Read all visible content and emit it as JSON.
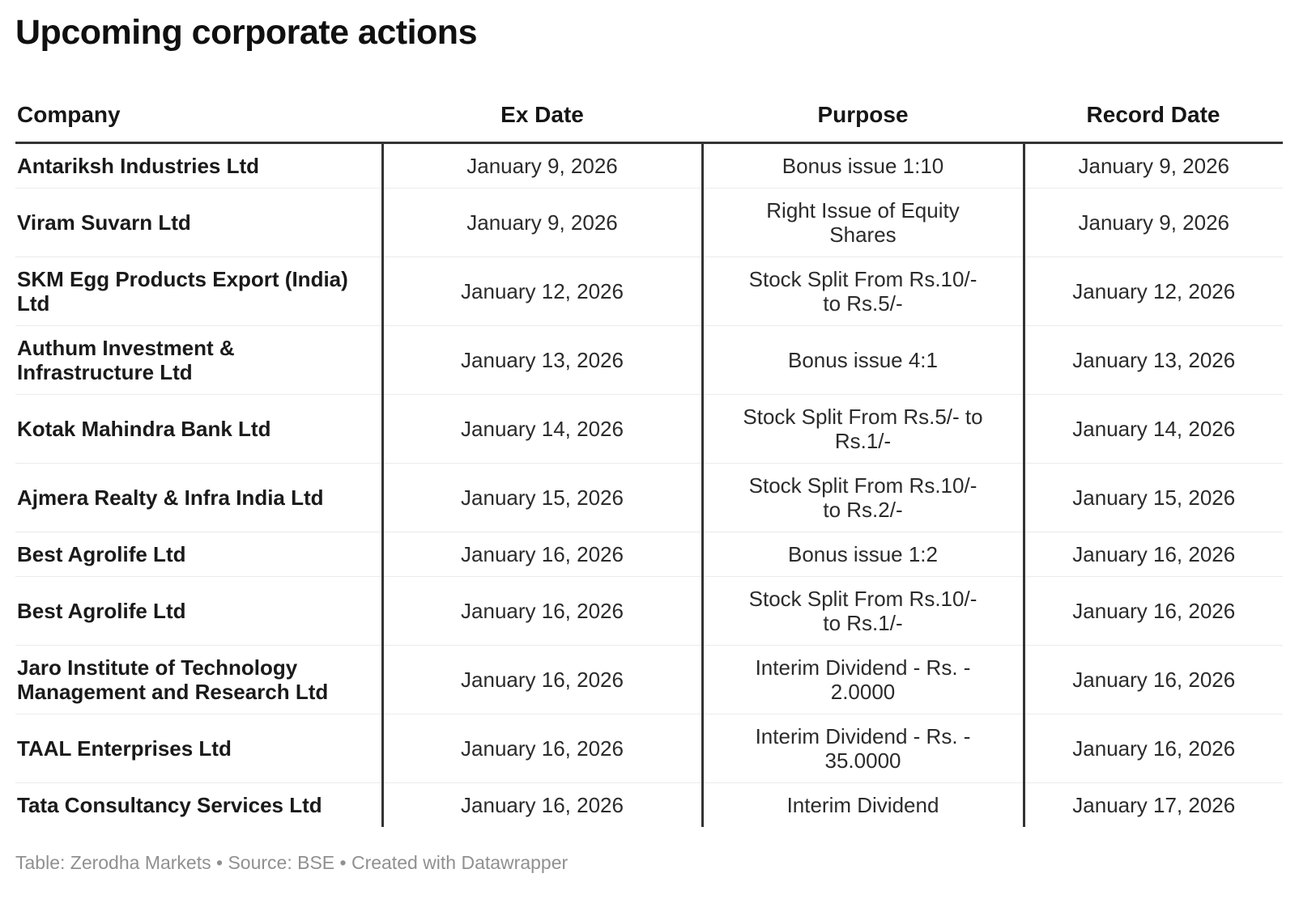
{
  "title": "Upcoming corporate actions",
  "chart_data": {
    "type": "table",
    "title": "Upcoming corporate actions",
    "columns": [
      {
        "key": "company",
        "label": "Company",
        "align": "left"
      },
      {
        "key": "ex_date",
        "label": "Ex Date",
        "align": "center"
      },
      {
        "key": "purpose",
        "label": "Purpose",
        "align": "center"
      },
      {
        "key": "record_date",
        "label": "Record Date",
        "align": "center"
      }
    ],
    "rows": [
      {
        "company": "Antariksh Industries Ltd",
        "ex_date": "January 9, 2026",
        "purpose": "Bonus issue 1:10",
        "record_date": "January 9, 2026"
      },
      {
        "company": "Viram Suvarn Ltd",
        "ex_date": "January 9, 2026",
        "purpose": "Right Issue of Equity Shares",
        "record_date": "January 9, 2026"
      },
      {
        "company": "SKM Egg Products Export (India) Ltd",
        "ex_date": "January 12, 2026",
        "purpose": "Stock Split From Rs.10/- to Rs.5/-",
        "record_date": "January 12, 2026"
      },
      {
        "company": "Authum Investment & Infrastructure Ltd",
        "ex_date": "January 13, 2026",
        "purpose": "Bonus issue 4:1",
        "record_date": "January 13, 2026"
      },
      {
        "company": "Kotak Mahindra Bank Ltd",
        "ex_date": "January 14, 2026",
        "purpose": "Stock Split From Rs.5/- to Rs.1/-",
        "record_date": "January 14, 2026"
      },
      {
        "company": "Ajmera Realty & Infra India Ltd",
        "ex_date": "January 15, 2026",
        "purpose": "Stock Split From Rs.10/- to Rs.2/-",
        "record_date": "January 15, 2026"
      },
      {
        "company": "Best Agrolife Ltd",
        "ex_date": "January 16, 2026",
        "purpose": "Bonus issue 1:2",
        "record_date": "January 16, 2026"
      },
      {
        "company": "Best Agrolife Ltd",
        "ex_date": "January 16, 2026",
        "purpose": "Stock Split From Rs.10/- to Rs.1/-",
        "record_date": "January 16, 2026"
      },
      {
        "company": "Jaro Institute of Technology Management and Research Ltd",
        "ex_date": "January 16, 2026",
        "purpose": "Interim Dividend - Rs. - 2.0000",
        "record_date": "January 16, 2026"
      },
      {
        "company": "TAAL Enterprises Ltd",
        "ex_date": "January 16, 2026",
        "purpose": "Interim Dividend - Rs. - 35.0000",
        "record_date": "January 16, 2026"
      },
      {
        "company": "Tata Consultancy Services Ltd",
        "ex_date": "January 16, 2026",
        "purpose": "Interim Dividend",
        "record_date": "January 17, 2026"
      }
    ],
    "layout": {
      "header_rule": true,
      "column_dividers": true,
      "row_dividers": true
    }
  },
  "footer": {
    "text": "Table: Zerodha Markets • Source: BSE • Created with Datawrapper"
  },
  "colors": {
    "background": "#ffffff",
    "title_text": "#101010",
    "header_text": "#161616",
    "body_text": "#2b2b2b",
    "company_text": "#1a1a1a",
    "header_rule": "#333333",
    "column_divider": "#333333",
    "row_divider": "#ebebeb",
    "footer_text": "#909090"
  }
}
